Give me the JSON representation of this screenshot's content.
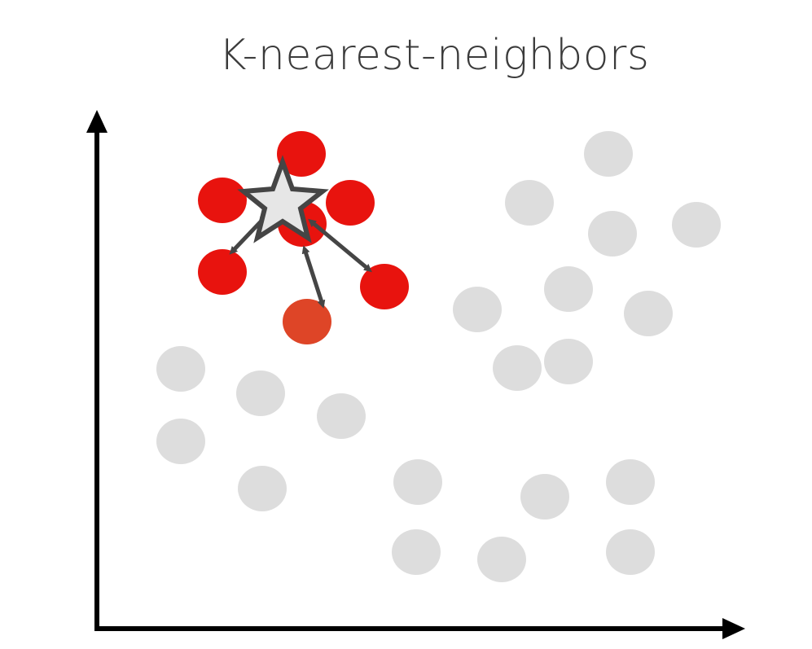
{
  "title": "K-nearest-neighbors",
  "colors": {
    "neighbor": "#e8130e",
    "neighbor_highlight": "#de4527",
    "other": "#dddddd",
    "star_fill": "#e6e6e6",
    "star_stroke": "#454545",
    "arrow": "#454545",
    "axis": "#000000"
  }
}
